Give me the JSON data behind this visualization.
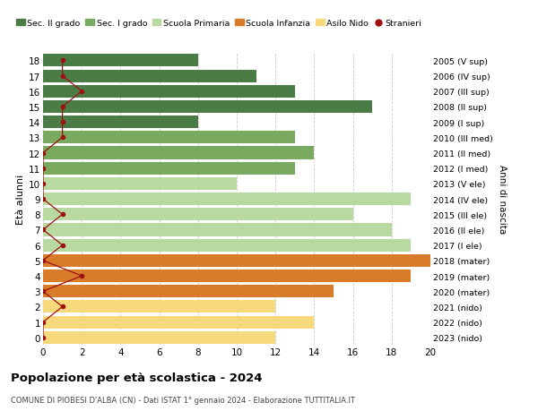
{
  "ages": [
    18,
    17,
    16,
    15,
    14,
    13,
    12,
    11,
    10,
    9,
    8,
    7,
    6,
    5,
    4,
    3,
    2,
    1,
    0
  ],
  "right_labels": [
    "2005 (V sup)",
    "2006 (IV sup)",
    "2007 (III sup)",
    "2008 (II sup)",
    "2009 (I sup)",
    "2010 (III med)",
    "2011 (II med)",
    "2012 (I med)",
    "2013 (V ele)",
    "2014 (IV ele)",
    "2015 (III ele)",
    "2016 (II ele)",
    "2017 (I ele)",
    "2018 (mater)",
    "2019 (mater)",
    "2020 (mater)",
    "2021 (nido)",
    "2022 (nido)",
    "2023 (nido)"
  ],
  "bar_values": [
    8,
    11,
    13,
    17,
    8,
    13,
    14,
    13,
    10,
    19,
    16,
    18,
    19,
    20,
    19,
    15,
    12,
    14,
    12
  ],
  "bar_colors": [
    "#4a7c45",
    "#4a7c45",
    "#4a7c45",
    "#4a7c45",
    "#4a7c45",
    "#7aaa5f",
    "#7aaa5f",
    "#7aaa5f",
    "#b8d9a0",
    "#b8d9a0",
    "#b8d9a0",
    "#b8d9a0",
    "#b8d9a0",
    "#d97c2a",
    "#d97c2a",
    "#d97c2a",
    "#f5d97a",
    "#f5d97a",
    "#f5d97a"
  ],
  "stranieri_values": [
    1,
    1,
    2,
    1,
    1,
    1,
    0,
    0,
    0,
    0,
    1,
    0,
    1,
    0,
    2,
    0,
    1,
    0,
    0
  ],
  "title": "Popolazione per età scolastica - 2024",
  "subtitle": "COMUNE DI PIOBESI D'ALBA (CN) - Dati ISTAT 1° gennaio 2024 - Elaborazione TUTTITALIA.IT",
  "ylabel_left": "Età alunni",
  "ylabel_right": "Anni di nascita",
  "legend_items": [
    {
      "label": "Sec. II grado",
      "color": "#4a7c45"
    },
    {
      "label": "Sec. I grado",
      "color": "#7aaa5f"
    },
    {
      "label": "Scuola Primaria",
      "color": "#b8d9a0"
    },
    {
      "label": "Scuola Infanzia",
      "color": "#d97c2a"
    },
    {
      "label": "Asilo Nido",
      "color": "#f5d97a"
    },
    {
      "label": "Stranieri",
      "color": "#a01010"
    }
  ],
  "xlim": [
    0,
    20
  ],
  "ylim": [
    -0.5,
    18.5
  ],
  "xticks": [
    0,
    2,
    4,
    6,
    8,
    10,
    12,
    14,
    16,
    18,
    20
  ],
  "background_color": "#ffffff",
  "grid_color": "#cccccc",
  "bar_height": 0.82
}
